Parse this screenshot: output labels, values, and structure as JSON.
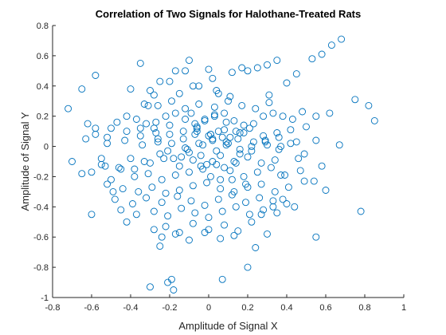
{
  "chart_data": {
    "type": "scatter",
    "title": "Correlation of Two Signals for Halothane-Treated Rats",
    "xlabel": "Amplitude of Signal X",
    "ylabel": "Amplitude of Signal Y",
    "xlim": [
      -0.8,
      1
    ],
    "ylim": [
      -1,
      0.8
    ],
    "xticks": [
      -0.8,
      -0.6,
      -0.4,
      -0.2,
      0,
      0.2,
      0.4,
      0.6,
      0.8,
      1
    ],
    "yticks": [
      -1,
      -0.8,
      -0.6,
      -0.4,
      -0.2,
      0,
      0.2,
      0.4,
      0.6,
      0.8
    ],
    "xtick_labels": [
      "-0.8",
      "-0.6",
      "-0.4",
      "-0.2",
      "0",
      "0.2",
      "0.4",
      "0.6",
      "0.8",
      "1"
    ],
    "ytick_labels": [
      "-1",
      "-0.8",
      "-0.6",
      "-0.4",
      "-0.2",
      "0",
      "0.2",
      "0.4",
      "0.6",
      "0.8"
    ],
    "grid": false,
    "legend": "none",
    "marker": "open-circle",
    "marker_color": "#0072bd",
    "axis_color": "#262626",
    "series": [
      {
        "x": [
          -0.72,
          -0.65,
          -0.58,
          -0.7,
          -0.6,
          -0.52,
          -0.6,
          -0.53,
          -0.52,
          -0.49,
          -0.4,
          -0.35,
          -0.42,
          -0.3,
          -0.28,
          -0.25,
          -0.2,
          -0.17,
          -0.12,
          -0.1,
          -0.05,
          0,
          0.02,
          0.05,
          0.12,
          0.17,
          0.2,
          0.25,
          0.3,
          0.35,
          0.45,
          0.53,
          0.58,
          0.63,
          0.68,
          0.75,
          0.82,
          0.85,
          -0.62,
          -0.58,
          -0.47,
          -0.42,
          -0.37,
          -0.32,
          -0.27,
          -0.22,
          -0.17,
          -0.12,
          -0.07,
          -0.02,
          0.03,
          0.08,
          0.13,
          0.18,
          0.23,
          0.28,
          0.33,
          0.38,
          0.43,
          0.48,
          0.55,
          0.62,
          -0.65,
          -0.55,
          -0.45,
          -0.4,
          -0.33,
          -0.25,
          -0.18,
          -0.11,
          -0.04,
          0.02,
          0.09,
          0.15,
          0.22,
          0.29,
          0.36,
          0.42,
          0.49,
          0.58,
          0.67,
          -0.58,
          -0.5,
          -0.42,
          -0.35,
          -0.28,
          -0.2,
          -0.13,
          -0.06,
          0.01,
          0.07,
          0.14,
          0.21,
          0.28,
          0.35,
          0.42,
          0.5,
          -0.55,
          -0.46,
          -0.38,
          -0.31,
          -0.24,
          -0.17,
          -0.1,
          -0.03,
          0.04,
          0.11,
          0.18,
          0.25,
          0.32,
          0.39,
          0.47,
          0.54,
          -0.5,
          -0.44,
          -0.36,
          -0.29,
          -0.22,
          -0.15,
          -0.08,
          -0.01,
          0.06,
          0.13,
          0.2,
          0.27,
          0.34,
          0.41,
          0.49,
          0.6,
          -0.63,
          -0.52,
          -0.43,
          -0.34,
          -0.26,
          -0.19,
          -0.12,
          -0.05,
          0.02,
          0.09,
          0.16,
          0.23,
          0.3,
          0.37,
          0.45,
          0.55,
          -0.48,
          -0.39,
          -0.32,
          -0.24,
          -0.16,
          -0.09,
          -0.02,
          0.05,
          0.12,
          0.19,
          0.26,
          0.33,
          0.4,
          -0.45,
          -0.37,
          -0.28,
          -0.21,
          -0.14,
          -0.07,
          0,
          0.07,
          0.14,
          0.21,
          0.28,
          0.35,
          0.44,
          -0.38,
          -0.3,
          -0.23,
          -0.15,
          -0.08,
          -0.01,
          0.06,
          0.13,
          0.2,
          0.27,
          0.34,
          -0.33,
          -0.26,
          -0.19,
          -0.12,
          -0.05,
          0.03,
          0.1,
          0.17,
          0.24,
          0.31,
          -0.28,
          -0.22,
          -0.15,
          -0.08,
          0,
          0.08,
          0.15,
          0.22,
          -0.24,
          -0.17,
          -0.1,
          -0.02,
          0.06,
          0.13,
          -0.35,
          -0.27,
          -0.2,
          -0.13,
          -0.06,
          0.01,
          0.08,
          0.16,
          -0.15,
          -0.08,
          0.04,
          0.11,
          -0.3,
          -0.21,
          -0.19,
          -0.18,
          0.07,
          0.2,
          0.55,
          0.78,
          -0.1,
          -0.03,
          0.04,
          0.1,
          0.16,
          0.22,
          0.29,
          0.36,
          -0.07,
          0,
          0.05,
          0.11,
          0.18,
          -0.04,
          0.02,
          0.08,
          0.14,
          -0.02,
          0.03,
          0.09,
          0.01,
          0.06,
          -0.09,
          -0.14,
          0.24,
          0.3,
          0.38,
          -0.25,
          -0.31,
          0.31,
          0.4,
          -0.21,
          -0.26,
          0.12,
          0.19,
          -0.06,
          0.27,
          0.33,
          0.37,
          0.46
        ],
        "y": [
          0.25,
          0.38,
          0.47,
          -0.1,
          -0.17,
          0.06,
          -0.45,
          -0.13,
          -0.25,
          -0.3,
          0.38,
          0.55,
          -0.5,
          0.37,
          0.34,
          0.43,
          0.43,
          0.5,
          0.5,
          0.57,
          0.4,
          0.51,
          0.45,
          0.35,
          0.49,
          0.52,
          0.5,
          0.52,
          0.54,
          0.57,
          0.48,
          0.58,
          0.61,
          0.67,
          0.71,
          0.31,
          0.27,
          0.17,
          0.15,
          0.12,
          0.16,
          0.2,
          0.18,
          0.15,
          0.16,
          0.2,
          0.22,
          0.18,
          0.15,
          0.17,
          0.2,
          0.22,
          0.17,
          0.14,
          0.15,
          0.2,
          0.22,
          0.2,
          0.18,
          0.23,
          0.2,
          0.22,
          -0.18,
          -0.12,
          -0.15,
          -0.08,
          -0.1,
          -0.05,
          -0.08,
          -0.02,
          -0.06,
          0.05,
          0.03,
          0.05,
          -0.03,
          0.04,
          0.06,
          0.02,
          -0.05,
          -0.13,
          0.01,
          0.08,
          0.12,
          0.1,
          0.07,
          0.12,
          0.08,
          0.05,
          0.1,
          0.08,
          0.06,
          0.1,
          0.12,
          0.07,
          0.09,
          0.11,
          0.13,
          -0.08,
          -0.14,
          -0.2,
          -0.18,
          -0.22,
          -0.19,
          -0.17,
          -0.15,
          -0.12,
          -0.16,
          -0.2,
          -0.17,
          -0.14,
          -0.19,
          -0.16,
          -0.23,
          -0.22,
          -0.28,
          -0.3,
          -0.27,
          -0.31,
          -0.29,
          -0.26,
          -0.24,
          -0.28,
          -0.3,
          -0.27,
          -0.25,
          -0.3,
          -0.27,
          -0.23,
          -0.29,
          0.05,
          0.02,
          0.04,
          0.01,
          0.03,
          0.02,
          -0.01,
          0.02,
          0.04,
          0.01,
          -0.02,
          0.03,
          0.01,
          0.0,
          0.03,
          0.04,
          -0.35,
          -0.38,
          -0.34,
          -0.37,
          -0.33,
          -0.36,
          -0.39,
          -0.35,
          -0.32,
          -0.37,
          -0.34,
          -0.36,
          -0.38,
          -0.42,
          -0.45,
          -0.43,
          -0.46,
          -0.41,
          -0.44,
          -0.47,
          -0.43,
          -0.4,
          -0.45,
          -0.42,
          -0.44,
          -0.4,
          -0.15,
          -0.11,
          -0.08,
          -0.13,
          -0.09,
          -0.12,
          -0.06,
          -0.1,
          -0.07,
          -0.11,
          -0.09,
          0.28,
          0.27,
          0.3,
          0.25,
          0.28,
          0.26,
          0.3,
          0.27,
          0.25,
          0.29,
          -0.55,
          -0.53,
          -0.57,
          -0.51,
          -0.55,
          -0.52,
          -0.56,
          -0.5,
          -0.6,
          -0.58,
          -0.62,
          -0.57,
          -0.61,
          -0.59,
          0.12,
          0.09,
          0.14,
          0.1,
          0.13,
          0.08,
          0.11,
          0.09,
          0.35,
          0.4,
          0.37,
          0.33,
          -0.93,
          -0.9,
          -0.88,
          -0.95,
          -0.88,
          -0.8,
          -0.6,
          -0.43,
          -0.04,
          0.01,
          -0.03,
          0.02,
          -0.05,
          0.0,
          0.03,
          -0.02,
          0.08,
          0.07,
          0.1,
          0.06,
          0.09,
          -0.13,
          -0.1,
          -0.14,
          -0.11,
          0.18,
          0.21,
          0.16,
          -0.2,
          -0.22,
          0.22,
          -0.07,
          -0.67,
          -0.58,
          -0.35,
          -0.66,
          0.27,
          0.34,
          0.42,
          -0.03,
          0.05,
          -0.22,
          -0.25,
          0.12,
          -0.45,
          -0.4,
          -0.19,
          -0.08
        ]
      }
    ]
  }
}
